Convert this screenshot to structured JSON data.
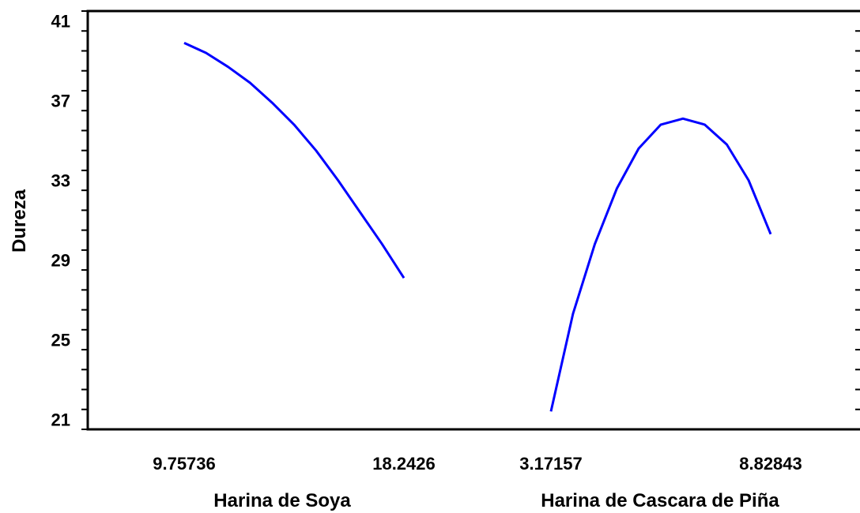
{
  "chart_data": {
    "type": "line",
    "title": "",
    "ylabel": "Dureza",
    "ylim": [
      20.5,
      41.5
    ],
    "yticks": [
      21,
      25,
      29,
      33,
      37,
      41
    ],
    "grid": false,
    "panels": [
      {
        "xlabel": "Harina de Soya",
        "xlim": [
          9.75736,
          18.2426
        ],
        "xtick_labels": [
          "9.75736",
          "18.2426"
        ],
        "series": [
          {
            "color": "#0000ff",
            "x": [
              9.75736,
              10.6,
              11.45,
              12.3,
              13.15,
              14.0,
              14.85,
              15.7,
              16.55,
              17.4,
              18.2426
            ],
            "y": [
              39.9,
              39.4,
              38.7,
              37.9,
              36.9,
              35.8,
              34.5,
              33.0,
              31.4,
              29.8,
              28.1
            ]
          }
        ]
      },
      {
        "xlabel": "Harina de Cascara de Piña",
        "xlim": [
          3.17157,
          8.82843
        ],
        "xtick_labels": [
          "3.17157",
          "8.82843"
        ],
        "series": [
          {
            "color": "#0000ff",
            "x": [
              3.17157,
              3.74,
              4.3,
              4.87,
              5.43,
              6.0,
              6.57,
              7.13,
              7.7,
              8.26,
              8.82843
            ],
            "y": [
              21.4,
              26.3,
              29.8,
              32.6,
              34.6,
              35.8,
              36.1,
              35.8,
              34.8,
              33.0,
              30.3
            ]
          }
        ]
      }
    ]
  }
}
